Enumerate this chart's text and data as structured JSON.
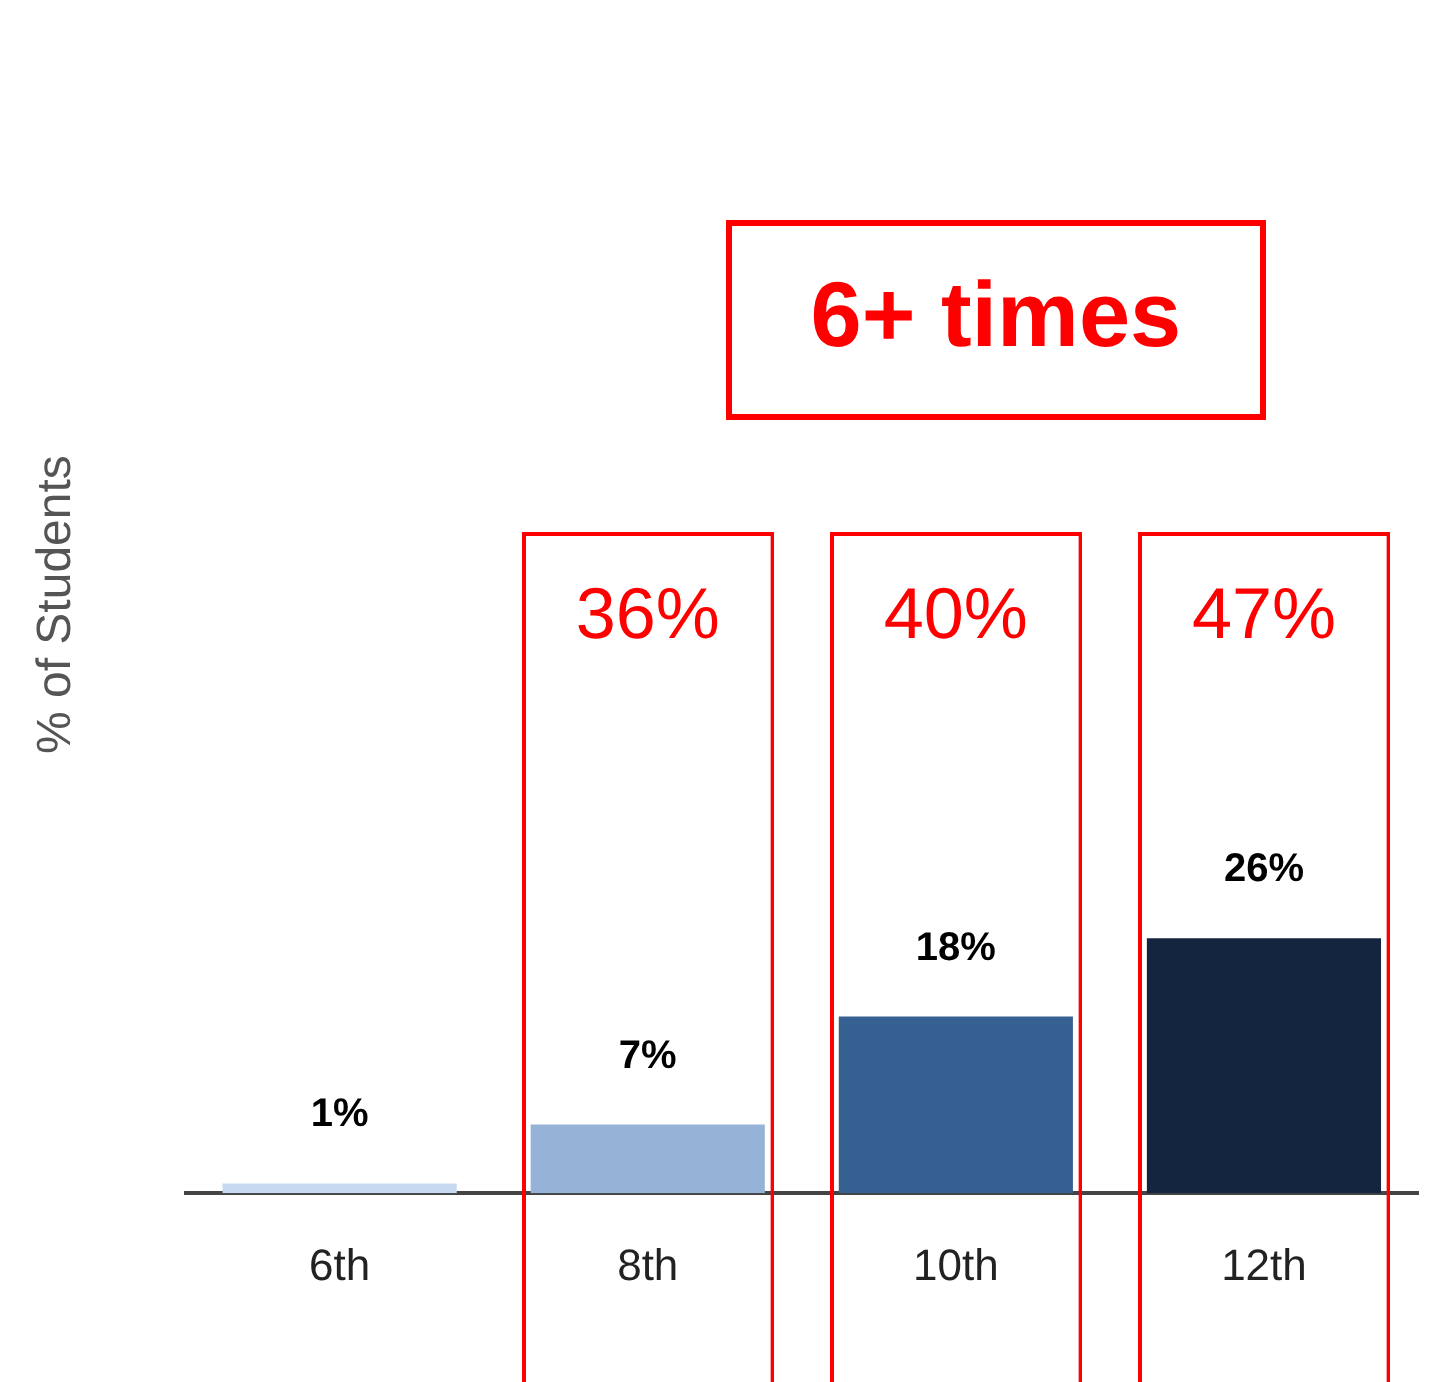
{
  "chart_data": {
    "type": "bar",
    "ylabel": "% of Students",
    "categories": [
      "6th",
      "8th",
      "10th",
      "12th"
    ],
    "values": [
      1,
      7,
      18,
      26
    ],
    "colors": [
      "#c6d9f0",
      "#95b3d7",
      "#366092",
      "#14263f"
    ],
    "value_labels": [
      "1%",
      "7%",
      "18%",
      "26%"
    ],
    "tick_labels": "x",
    "grid": false,
    "legend": false,
    "annotations": [
      "6+ times",
      "36%",
      "40%",
      "47%"
    ]
  }
}
